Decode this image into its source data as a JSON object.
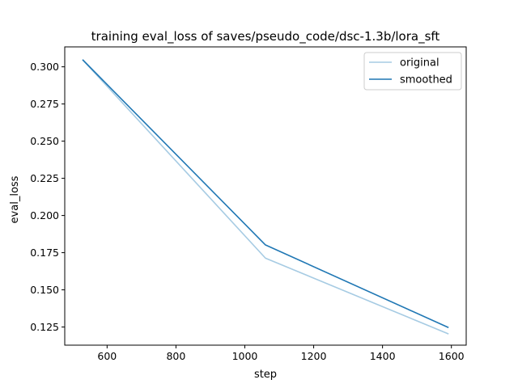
{
  "chart_data": {
    "type": "line",
    "title": "training eval_loss of saves/pseudo_code/dsc-1.3b/lora_sft",
    "xlabel": "step",
    "ylabel": "eval_loss",
    "xlim": [
      477,
      1643
    ],
    "ylim": [
      0.1128,
      0.3134
    ],
    "xticks": [
      600,
      800,
      1000,
      1200,
      1400,
      1600
    ],
    "yticks": [
      0.125,
      0.15,
      0.175,
      0.2,
      0.225,
      0.25,
      0.275,
      0.3
    ],
    "xtick_labels": [
      "600",
      "800",
      "1000",
      "1200",
      "1400",
      "1600"
    ],
    "ytick_labels": [
      "0.125",
      "0.150",
      "0.175",
      "0.200",
      "0.225",
      "0.250",
      "0.275",
      "0.300"
    ],
    "grid": false,
    "legend_position": "top-right",
    "series": [
      {
        "name": "original",
        "color": "#a6cbe3",
        "x": [
          530,
          1060,
          1590
        ],
        "y": [
          0.3045,
          0.1713,
          0.1205
        ]
      },
      {
        "name": "smoothed",
        "color": "#1f77b4",
        "x": [
          530,
          1060,
          1590
        ],
        "y": [
          0.3045,
          0.1802,
          0.1248
        ]
      }
    ]
  }
}
